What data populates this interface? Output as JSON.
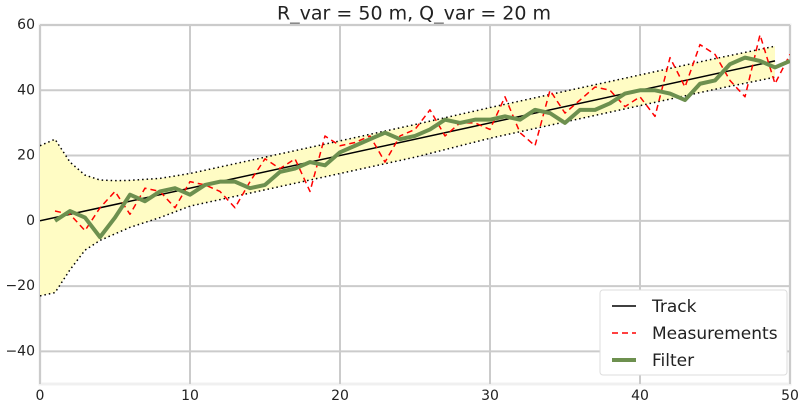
{
  "chart_data": {
    "type": "line",
    "title": "R_var = 50 m, Q_var = 20 m",
    "xlim": [
      0,
      50
    ],
    "ylim": [
      -50,
      60
    ],
    "xticks": [
      0,
      10,
      20,
      30,
      40,
      50
    ],
    "yticks": [
      {
        "value": -40,
        "label": "−40"
      },
      {
        "value": -20,
        "label": "−20"
      },
      0,
      20,
      40,
      60
    ],
    "grid": true,
    "legend": "lower right",
    "band": {
      "color": "#fffcc4",
      "x": [
        0,
        1,
        2,
        3,
        4,
        5,
        6,
        8,
        10,
        15,
        20,
        25,
        30,
        35,
        40,
        45,
        49
      ],
      "upper": [
        23,
        25,
        18,
        14,
        12.5,
        12.3,
        12.4,
        13,
        14.5,
        19.5,
        24.5,
        29.5,
        34.7,
        39.7,
        44.7,
        49.7,
        53.5
      ],
      "lower": [
        -23,
        -22,
        -15,
        -9,
        -6,
        -4,
        -2,
        1,
        4.5,
        9.5,
        14.5,
        19.5,
        25.3,
        30.3,
        35.3,
        40.3,
        44
      ]
    },
    "series": [
      {
        "name": "Track",
        "color": "#000000",
        "linestyle": "solid",
        "linewidth": 1.5,
        "x": [
          0,
          49
        ],
        "values": [
          0,
          49
        ]
      },
      {
        "name": "Measurements",
        "color": "#ff0000",
        "linestyle": "dashed",
        "linewidth": 1.5,
        "x": [
          1,
          2,
          3,
          4,
          5,
          6,
          7,
          8,
          9,
          10,
          11,
          12,
          13,
          14,
          15,
          16,
          17,
          18,
          19,
          20,
          21,
          22,
          23,
          24,
          25,
          26,
          27,
          28,
          29,
          30,
          31,
          32,
          33,
          34,
          35,
          36,
          37,
          38,
          39,
          40,
          41,
          42,
          43,
          44,
          45,
          46,
          47,
          48,
          49,
          50
        ],
        "values": [
          3,
          2,
          -3,
          4,
          9,
          2,
          10,
          9,
          4,
          12,
          11,
          9,
          4,
          12,
          19,
          16,
          19,
          9,
          26,
          23,
          24,
          26,
          18,
          26,
          28,
          34,
          26,
          30,
          30,
          28,
          38,
          27,
          23,
          40,
          33,
          37,
          41,
          40,
          35,
          38,
          32,
          50,
          41,
          54,
          51,
          43,
          38,
          57,
          42,
          51
        ]
      },
      {
        "name": "Filter",
        "color": "#6d904f",
        "linestyle": "solid",
        "linewidth": 4,
        "x": [
          1,
          2,
          3,
          4,
          5,
          6,
          7,
          8,
          9,
          10,
          11,
          12,
          13,
          14,
          15,
          16,
          17,
          18,
          19,
          20,
          21,
          22,
          23,
          24,
          25,
          26,
          27,
          28,
          29,
          30,
          31,
          32,
          33,
          34,
          35,
          36,
          37,
          38,
          39,
          40,
          41,
          42,
          43,
          44,
          45,
          46,
          47,
          48,
          49,
          50
        ],
        "values": [
          0,
          3,
          1,
          -5,
          1,
          8,
          6,
          9,
          10,
          8,
          11,
          12,
          12,
          10,
          11,
          15,
          16,
          18,
          17,
          21,
          23,
          25,
          27,
          25,
          26,
          28,
          31,
          30,
          31,
          31,
          32,
          31,
          34,
          33,
          30,
          34,
          34,
          36,
          39,
          40,
          40,
          39,
          37,
          42,
          43,
          48,
          50,
          49,
          47,
          49
        ]
      }
    ]
  }
}
